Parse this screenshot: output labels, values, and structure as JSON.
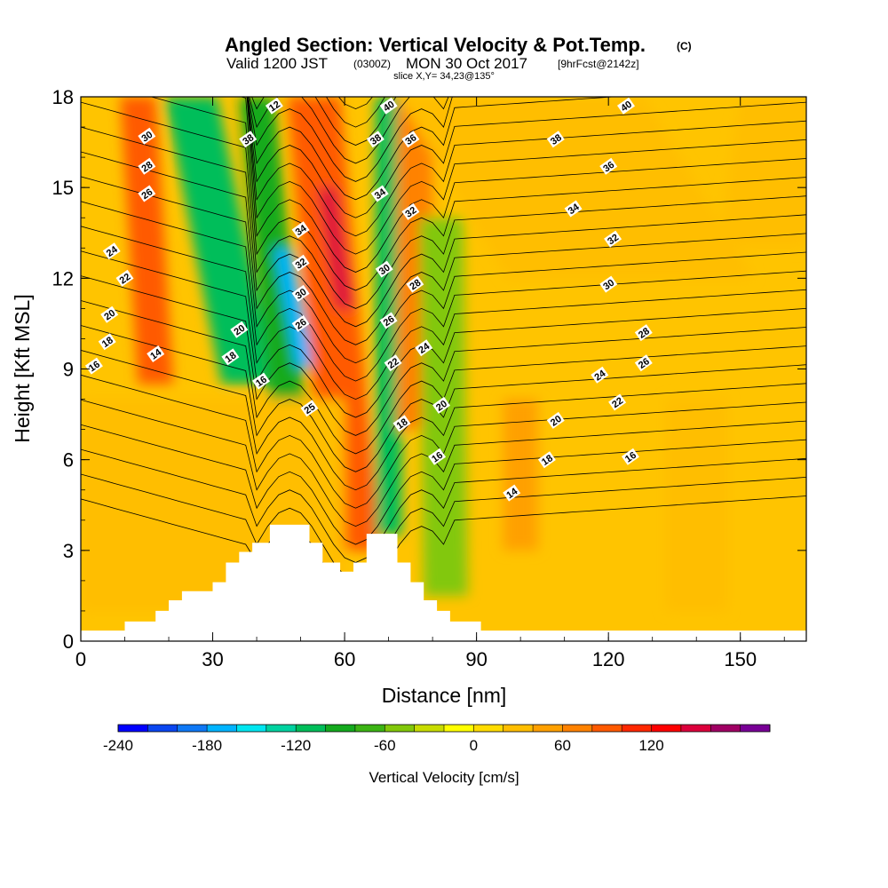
{
  "chart_data": {
    "type": "heatmap",
    "title": {
      "main": "Angled Section: Vertical Velocity & Pot.Temp.",
      "main_tag": "(C)",
      "valid_prefix": "Valid 1200 JST",
      "valid_z": "(0300Z)",
      "valid_date": "MON 30 Oct 2017",
      "valid_fcst": "[9hrFcst@2142z]",
      "slice": "slice X,Y= 34,23@135°"
    },
    "xlabel": "Distance [nm]",
    "ylabel": "Height [Kft MSL]",
    "xlim": [
      0,
      165
    ],
    "ylim": [
      0,
      18
    ],
    "xticks": [
      "0",
      "30",
      "60",
      "90",
      "120",
      "150"
    ],
    "yticks": [
      "0",
      "3",
      "6",
      "9",
      "12",
      "15",
      "18"
    ],
    "colorbar": {
      "label": "Vertical Velocity [cm/s]",
      "min": -240,
      "step": 20,
      "colors": [
        "#0000ff",
        "#0a46f0",
        "#0f78f5",
        "#00b4ff",
        "#00e6f0",
        "#00d2a0",
        "#00be5a",
        "#14aa1e",
        "#3cb414",
        "#82c80a",
        "#c8dc00",
        "#ffff00",
        "#ffdc00",
        "#ffbe00",
        "#ffa000",
        "#ff8200",
        "#ff5a00",
        "#ff2800",
        "#ff0000",
        "#dc003c",
        "#a00064",
        "#780096"
      ],
      "tick_labels": [
        "-240",
        "-180",
        "-120",
        "-60",
        "0",
        "60",
        "120"
      ]
    },
    "contour_variable": "Potential temperature (C)",
    "contour_labels": [
      "30",
      "28",
      "26",
      "24",
      "22",
      "20",
      "18",
      "16",
      "14",
      "12",
      "38",
      "34",
      "32",
      "30",
      "26",
      "25",
      "20",
      "18",
      "16",
      "40",
      "38",
      "36",
      "34",
      "32",
      "30",
      "28",
      "26",
      "24",
      "22",
      "20",
      "18",
      "16",
      "14",
      "40",
      "38",
      "36",
      "34",
      "32",
      "30",
      "28",
      "26",
      "24",
      "22",
      "20",
      "18",
      "16"
    ],
    "terrain_profile_kft": [
      [
        0,
        0.35
      ],
      [
        10,
        0.35
      ],
      [
        10,
        0.65
      ],
      [
        17,
        0.65
      ],
      [
        17,
        1
      ],
      [
        20,
        1
      ],
      [
        20,
        1.35
      ],
      [
        23,
        1.35
      ],
      [
        23,
        1.65
      ],
      [
        30,
        1.65
      ],
      [
        30,
        1.95
      ],
      [
        33,
        1.95
      ],
      [
        33,
        2.6
      ],
      [
        36,
        2.6
      ],
      [
        36,
        2.95
      ],
      [
        39,
        2.95
      ],
      [
        39,
        3.25
      ],
      [
        43,
        3.25
      ],
      [
        43,
        3.85
      ],
      [
        52,
        3.85
      ],
      [
        52,
        3.25
      ],
      [
        55,
        3.25
      ],
      [
        55,
        2.6
      ],
      [
        59,
        2.6
      ],
      [
        59,
        2.3
      ],
      [
        62,
        2.3
      ],
      [
        62,
        2.6
      ],
      [
        65,
        2.6
      ],
      [
        65,
        3.55
      ],
      [
        72,
        3.55
      ],
      [
        72,
        2.6
      ],
      [
        75,
        2.6
      ],
      [
        75,
        1.95
      ],
      [
        78,
        1.95
      ],
      [
        78,
        1.35
      ],
      [
        81,
        1.35
      ],
      [
        81,
        1
      ],
      [
        84,
        1
      ],
      [
        84,
        0.65
      ],
      [
        91,
        0.65
      ],
      [
        91,
        0.35
      ],
      [
        165,
        0.35
      ]
    ]
  }
}
